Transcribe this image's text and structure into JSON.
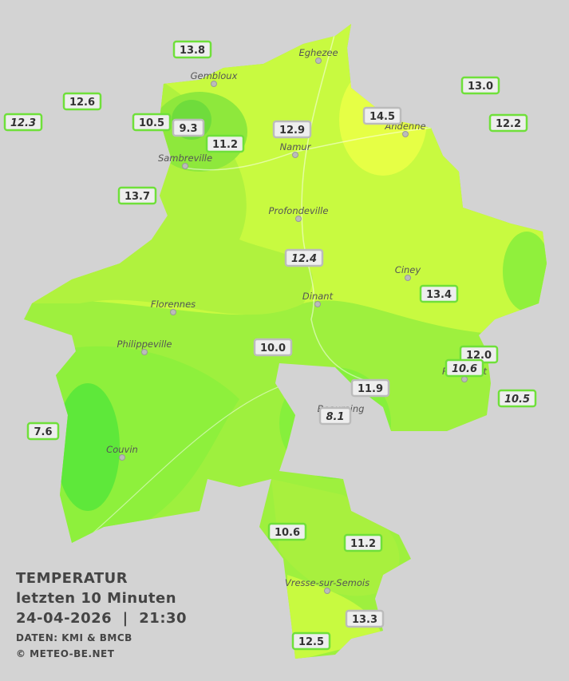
{
  "title": {
    "heading": "TEMPERATUR",
    "period": "letzten 10 Minuten",
    "timestamp": "24-04-2026  |  21:30",
    "source": "DATEN: KMI & BMCB",
    "copyright": "© METEO-BE.NET"
  },
  "cities": [
    "Eghezee",
    "Gembloux",
    "Andenne",
    "Namur",
    "Sambreville",
    "Profondeville",
    "Ciney",
    "Dinant",
    "Florennes",
    "Philippeville",
    "Beauraing",
    "Rochefort",
    "Couvin",
    "Vresse-sur-Semois"
  ],
  "stations": [
    {
      "label": "13.8",
      "italic": false
    },
    {
      "label": "12.6",
      "italic": false
    },
    {
      "label": "12.3",
      "italic": true
    },
    {
      "label": "10.5",
      "italic": false
    },
    {
      "label": "9.3",
      "italic": false
    },
    {
      "label": "11.2",
      "italic": false
    },
    {
      "label": "12.9",
      "italic": false
    },
    {
      "label": "14.5",
      "italic": false
    },
    {
      "label": "13.0",
      "italic": false
    },
    {
      "label": "12.2",
      "italic": false
    },
    {
      "label": "13.7",
      "italic": false
    },
    {
      "label": "12.4",
      "italic": true
    },
    {
      "label": "13.4",
      "italic": false
    },
    {
      "label": "10.0",
      "italic": false
    },
    {
      "label": "12.0",
      "italic": false
    },
    {
      "label": "10.6",
      "italic": true
    },
    {
      "label": "10.5",
      "italic": true
    },
    {
      "label": "11.9",
      "italic": false
    },
    {
      "label": "8.1",
      "italic": true
    },
    {
      "label": "7.6",
      "italic": false
    },
    {
      "label": "10.6",
      "italic": false
    },
    {
      "label": "11.2",
      "italic": false
    },
    {
      "label": "13.3",
      "italic": false
    },
    {
      "label": "12.5",
      "italic": false
    }
  ]
}
